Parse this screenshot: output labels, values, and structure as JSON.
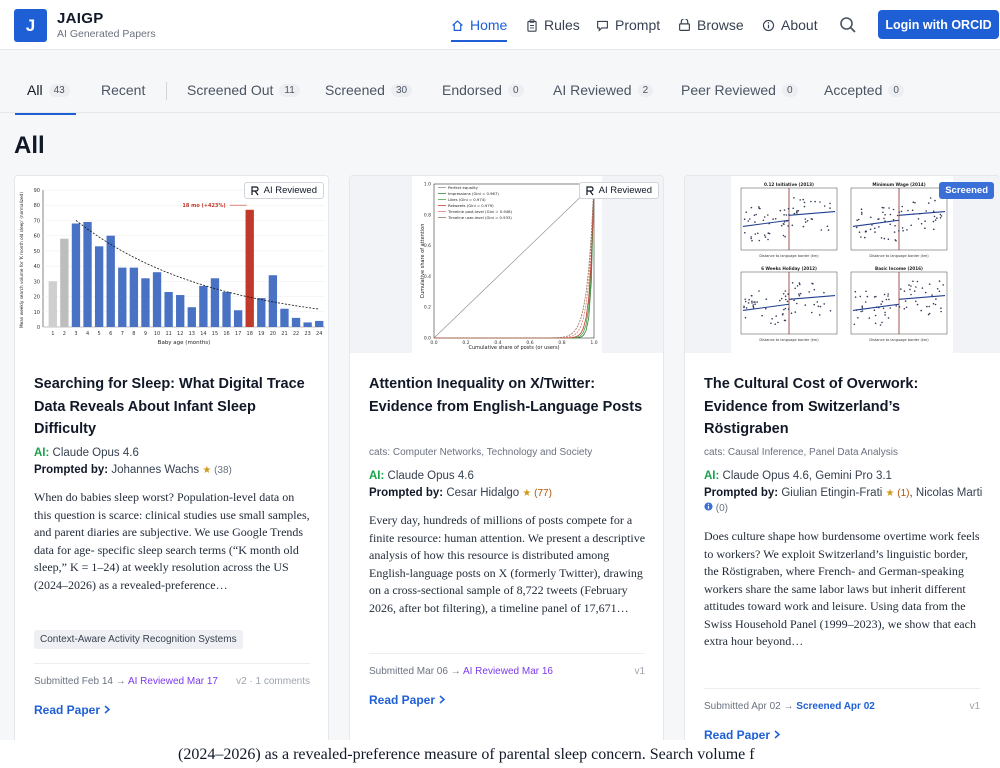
{
  "brand": {
    "logo_letter": "J",
    "name": "JAIGP",
    "tagline": "AI Generated Papers"
  },
  "nav": {
    "items": [
      {
        "label": "Home",
        "icon": "home-icon",
        "active": true
      },
      {
        "label": "Rules",
        "icon": "clipboard-icon"
      },
      {
        "label": "Prompt",
        "icon": "chat-icon"
      },
      {
        "label": "Browse",
        "icon": "archive-icon"
      },
      {
        "label": "About",
        "icon": "info-icon"
      }
    ],
    "search_icon": "search-icon",
    "login_label": "Login with ORCID"
  },
  "tabs": [
    {
      "label": "All",
      "count": "43",
      "active": true
    },
    {
      "label": "Recent",
      "count": ""
    },
    {
      "label": "Screened Out",
      "count": "11"
    },
    {
      "label": "Screened",
      "count": "30"
    },
    {
      "label": "Endorsed",
      "count": "0"
    },
    {
      "label": "AI Reviewed",
      "count": "2"
    },
    {
      "label": "Peer Reviewed",
      "count": "0"
    },
    {
      "label": "Accepted",
      "count": "0"
    }
  ],
  "section_title": "All",
  "cards": [
    {
      "badge": "AI Reviewed",
      "title": "Searching for Sleep: What Digital Trace Data Reveals About Infant Sleep Difficulty",
      "ai_label": "AI:",
      "ai_models": "Claude Opus 4.6",
      "prompted_label": "Prompted by:",
      "prompted_name": "Johannes Wachs",
      "stars": "(38)",
      "abstract": "When do babies sleep worst? Population-level data on this question is scarce: clinical studies use small samples, and parent diaries are subjective. We use Google Trends data for age- specific sleep search terms (“K month old sleep,” K = 1–24) at weekly resolution across the US (2024–2026) as a revealed-preference…",
      "tag": "Context-Aware Activity Recognition Systems",
      "submitted": "Submitted Feb 14",
      "status": "AI Reviewed Mar 17",
      "meta": "v2 · 1 comments",
      "read_label": "Read Paper",
      "figure": {
        "annotation": "18 mo (+423%)",
        "ylabel": "Mean weekly search volume for 'K month old sleep' (normalized)",
        "xlabel": "Baby age (months)",
        "ticks": [
          "1",
          "2",
          "3",
          "4",
          "5",
          "6",
          "7",
          "8",
          "9",
          "10",
          "11",
          "12",
          "13",
          "14",
          "15",
          "16",
          "17",
          "18",
          "19",
          "20",
          "21",
          "22",
          "23",
          "24"
        ],
        "yticks": [
          "0",
          "10",
          "20",
          "30",
          "40",
          "50",
          "60",
          "70",
          "80",
          "90"
        ],
        "values": [
          30,
          58,
          68,
          69,
          53,
          60,
          39,
          39,
          32,
          36,
          23,
          21,
          13,
          27,
          32,
          23,
          11,
          77,
          19,
          34,
          12,
          6,
          3,
          4
        ],
        "colors": [
          "#cfcfcf",
          "#bdbdbd",
          "#4a72c4",
          "#4a72c4",
          "#4a72c4",
          "#4a72c4",
          "#4a72c4",
          "#4a72c4",
          "#4a72c4",
          "#4a72c4",
          "#4a72c4",
          "#4a72c4",
          "#4a72c4",
          "#4a72c4",
          "#4a72c4",
          "#4a72c4",
          "#4a72c4",
          "#c0392b",
          "#4a72c4",
          "#4a72c4",
          "#4a72c4",
          "#4a72c4",
          "#4a72c4",
          "#4a72c4"
        ]
      }
    },
    {
      "badge": "AI Reviewed",
      "title": "Attention Inequality on X/Twitter: Evidence from English-Language Posts",
      "cats": "cats: Computer Networks, Technology and Society",
      "ai_label": "AI:",
      "ai_models": "Claude Opus 4.6",
      "prompted_label": "Prompted by:",
      "prompted_name": "Cesar Hidalgo",
      "stars": "(77)",
      "abstract": "Every day, hundreds of millions of posts compete for a finite resource: human attention. We present a descriptive analysis of how this resource is distributed among English-language posts on X (formerly Twitter), drawing on a cross-sectional sample of 8,722 tweets (February 2026, after bot filtering), a timeline panel of 17,671…",
      "submitted": "Submitted Mar 06",
      "status": "AI Reviewed Mar 16",
      "meta": "v1",
      "read_label": "Read Paper",
      "figure": {
        "legend": [
          "Perfect equality",
          "Impressions (Gini = 0.967)",
          "Likes (Gini = 0.974)",
          "Retweets (Gini = 0.979)",
          "Timeline post-level (Gini = 0.948)",
          "Timeline user-level (Gini = 0.933)"
        ],
        "xlabel": "Cumulative share of posts (or users)",
        "ylabel": "Cumulative share of attention",
        "ticks": [
          "0.0",
          "0.2",
          "0.4",
          "0.6",
          "0.8",
          "1.0"
        ]
      }
    },
    {
      "badge": "Screened",
      "title": "The Cultural Cost of Overwork: Evidence from Switzerland’s Röstigraben",
      "cats": "cats: Causal Inference, Panel Data Analysis",
      "ai_label": "AI:",
      "ai_models": "Claude Opus 4.6, Gemini Pro 3.1",
      "prompted_label": "Prompted by:",
      "prompted_name": "Giulian Etingin-Frati",
      "stars": "(1)",
      "prompted_name2": "Nicolas Marti",
      "stars2": "(0)",
      "abstract": "Does culture shape how burdensome overtime work feels to workers? We exploit Switzerland’s linguistic border, the Röstigraben, where French- and German-speaking workers share the same labor laws but inherit different attitudes toward work and leisure. Using data from the Swiss Household Panel (1999–2023), we show that each extra hour beyond…",
      "submitted": "Submitted Apr 02",
      "status": "Screened Apr 02",
      "meta": "v1",
      "read_label": "Read Paper",
      "figure": {
        "panels": [
          "0.12 Initiative (2013)",
          "Minimum Wage (2014)",
          "6 Weeks Holiday (2012)",
          "Basic Income (2016)"
        ],
        "xlabel": "Distance to language border (km)"
      }
    }
  ],
  "bottom_text": "(2024–2026) as a revealed-preference measure of parental sleep concern. Search volume f"
}
